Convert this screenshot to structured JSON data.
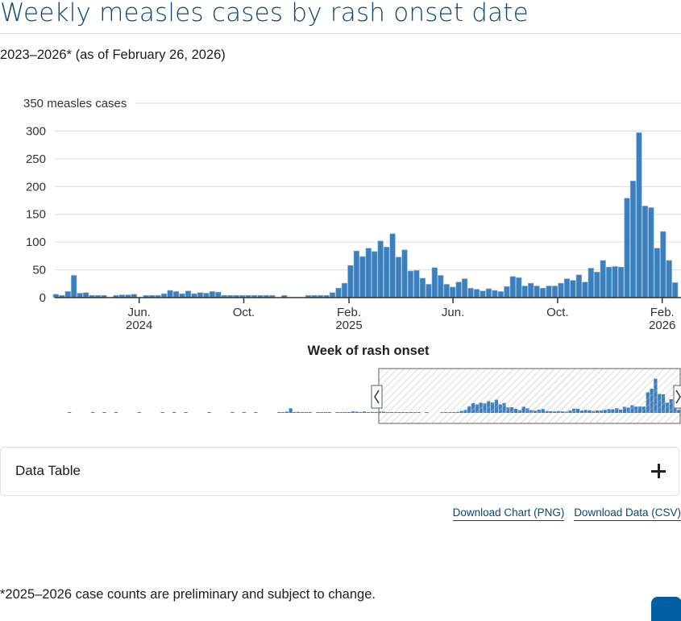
{
  "header": {
    "title": "Weekly measles cases by rash onset date",
    "subtitle": "2023–2026* (as of February 26, 2026)"
  },
  "chart_data": {
    "type": "bar",
    "title": "Weekly measles cases by rash onset date",
    "ylabel": "measles cases",
    "xlabel": "Week of rash onset",
    "ylim": [
      0,
      350
    ],
    "yticks": [
      0,
      50,
      100,
      150,
      200,
      250,
      300,
      350
    ],
    "ytick_labels": [
      "0",
      "50",
      "100",
      "150",
      "200",
      "250",
      "300",
      "350 measles cases"
    ],
    "grid": true,
    "bar_color": "#3a7fbe",
    "xticks": [
      {
        "week_index": 14.3,
        "label1": "Jun.",
        "label2": "2024"
      },
      {
        "week_index": 31.7,
        "label1": "Oct.",
        "label2": ""
      },
      {
        "week_index": 49.2,
        "label1": "Feb.",
        "label2": "2025"
      },
      {
        "week_index": 66.5,
        "label1": "Jun.",
        "label2": ""
      },
      {
        "week_index": 83.9,
        "label1": "Oct.",
        "label2": ""
      },
      {
        "week_index": 101.3,
        "label1": "Feb.",
        "label2": "2026"
      }
    ],
    "values": [
      6,
      4,
      11,
      40,
      8,
      9,
      4,
      4,
      4,
      0,
      4,
      5,
      5,
      6,
      0,
      4,
      4,
      4,
      7,
      13,
      11,
      7,
      12,
      7,
      9,
      8,
      11,
      10,
      4,
      4,
      4,
      4,
      4,
      4,
      4,
      4,
      4,
      0,
      4,
      0,
      0,
      0,
      4,
      4,
      4,
      4,
      9,
      17,
      26,
      58,
      84,
      74,
      89,
      83,
      102,
      91,
      115,
      73,
      86,
      48,
      49,
      35,
      24,
      54,
      40,
      24,
      19,
      28,
      34,
      17,
      15,
      12,
      16,
      13,
      11,
      20,
      38,
      36,
      21,
      26,
      21,
      17,
      21,
      21,
      26,
      34,
      31,
      41,
      28,
      53,
      46,
      67,
      55,
      56,
      55,
      179,
      210,
      297,
      165,
      162,
      89,
      119,
      67,
      27
    ],
    "navigator": {
      "selection_start_fraction": 0.555,
      "selection_end_fraction": 1.0
    }
  },
  "data_table": {
    "label": "Data Table"
  },
  "links": {
    "download_chart": "Download Chart (PNG)",
    "download_data": "Download Data (CSV)"
  },
  "footnote": "*2025–2026 case counts are preliminary and subject to change."
}
